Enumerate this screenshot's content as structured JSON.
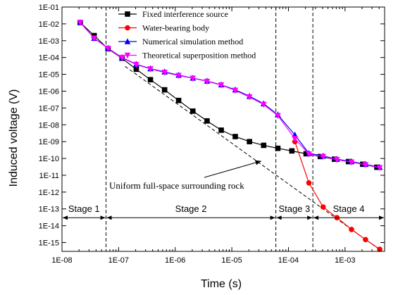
{
  "chart_data": {
    "type": "line",
    "xlabel": "Time (s)",
    "ylabel": "Induced voltage (V)",
    "xscale": "log",
    "yscale": "log",
    "xlim": [
      1e-08,
      0.005
    ],
    "ylim": [
      3e-16,
      0.1
    ],
    "x_tick_labels": [
      "1E-08",
      "1E-07",
      "1E-06",
      "1E-05",
      "1E-04",
      "1E-03"
    ],
    "y_tick_labels": [
      "1E-15",
      "1E-14",
      "1E-13",
      "1E-12",
      "1E-11",
      "1E-10",
      "1E-09",
      "1E-08",
      "1E-07",
      "1E-06",
      "1E-05",
      "1E-04",
      "1E-03",
      "1E-02",
      "1E-01"
    ],
    "legend_position": "top-center",
    "series": [
      {
        "name": "Fixed interference source",
        "color": "#000000",
        "marker": "square",
        "x": [
          2.1e-08,
          3.7e-08,
          6.5e-08,
          1.15e-07,
          2.05e-07,
          3.65e-07,
          6.5e-07,
          1.15e-06,
          2.05e-06,
          3.65e-06,
          6.5e-06,
          1.15e-05,
          2.05e-05,
          3.65e-05,
          6.5e-05,
          0.000115,
          0.000205,
          0.000365,
          0.00065,
          0.00115,
          0.00205,
          0.00365
        ],
        "y": [
          0.012,
          0.002,
          0.00033,
          9e-05,
          2e-05,
          4.8e-06,
          1.2e-06,
          2.8e-07,
          6.5e-08,
          1.7e-08,
          4.8e-09,
          2e-09,
          1e-09,
          6e-10,
          4e-10,
          2.8e-10,
          1.9e-10,
          1.3e-10,
          9e-11,
          6.5e-11,
          4.5e-11,
          3e-11
        ]
      },
      {
        "name": "Water-bearing body",
        "color": "#ff0000",
        "marker": "circle",
        "x": [
          0.00013,
          0.00023,
          0.00041,
          0.00072,
          0.0013,
          0.0023,
          0.0041
        ],
        "y": [
          1e-09,
          3.5e-12,
          1.3e-13,
          3e-14,
          6e-15,
          1.5e-15,
          4e-16
        ]
      },
      {
        "name": "Numerical simulation method",
        "color": "#0000ff",
        "marker": "triangle-up",
        "x": [
          2.1e-08,
          3.7e-08,
          6.5e-08,
          1.15e-07,
          2.05e-07,
          3.65e-07,
          6.5e-07,
          1.15e-06,
          2.05e-06,
          3.65e-06,
          6.5e-06,
          1.15e-05,
          2.05e-05,
          3.65e-05,
          6.5e-05,
          0.00013,
          0.00023,
          0.00041,
          0.00072,
          0.0013,
          0.0023,
          0.0041
        ],
        "y": [
          0.012,
          0.0014,
          0.00036,
          0.0001,
          4e-05,
          2.2e-05,
          1.4e-05,
          9e-06,
          6e-06,
          4e-06,
          2.4e-06,
          1.2e-06,
          5e-07,
          1.8e-07,
          4e-08,
          2.5e-09,
          2e-10,
          1.4e-10,
          9e-11,
          6.5e-11,
          4.5e-11,
          3e-11
        ]
      },
      {
        "name": "Theoretical superposition method",
        "color": "#ff00ff",
        "marker": "triangle-down",
        "x": [
          2.1e-08,
          3.7e-08,
          6.5e-08,
          1.15e-07,
          2.05e-07,
          3.65e-07,
          6.5e-07,
          1.15e-06,
          2.05e-06,
          3.65e-06,
          6.5e-06,
          1.15e-05,
          2.05e-05,
          3.65e-05,
          6.5e-05,
          0.00013,
          0.00023,
          0.00041,
          0.00072,
          0.0013,
          0.0023,
          0.0041
        ],
        "y": [
          0.012,
          0.0014,
          0.00035,
          9.5e-05,
          3.8e-05,
          2.1e-05,
          1.3e-05,
          8.5e-06,
          5.8e-06,
          3.8e-06,
          2.3e-06,
          1.1e-06,
          4.5e-07,
          1.6e-07,
          3.5e-08,
          1.5e-09,
          1.8e-10,
          1.3e-10,
          8.5e-11,
          6e-11,
          4.2e-11,
          2.8e-11
        ]
      }
    ],
    "dashed_lines": [
      {
        "x": [
          1.3e-07,
          0.0045
        ],
        "y": [
          3e-05,
          3e-16
        ]
      }
    ],
    "vertical_dashed_x": [
      6e-08,
      6e-05,
      0.00027
    ],
    "annotation": {
      "text": "Uniform full-space surrounding rock",
      "arrow_to": [
        3.3e-05,
        7e-11
      ]
    },
    "stages": [
      {
        "label": "Stage 1",
        "from": 1e-08,
        "to": 6e-08
      },
      {
        "label": "Stage 2",
        "from": 6e-08,
        "to": 6e-05
      },
      {
        "label": "Stage 3",
        "from": 6e-05,
        "to": 0.00027
      },
      {
        "label": "Stage 4",
        "from": 0.00027,
        "to": 0.005
      }
    ],
    "stage_arrow_y": 3e-14
  }
}
